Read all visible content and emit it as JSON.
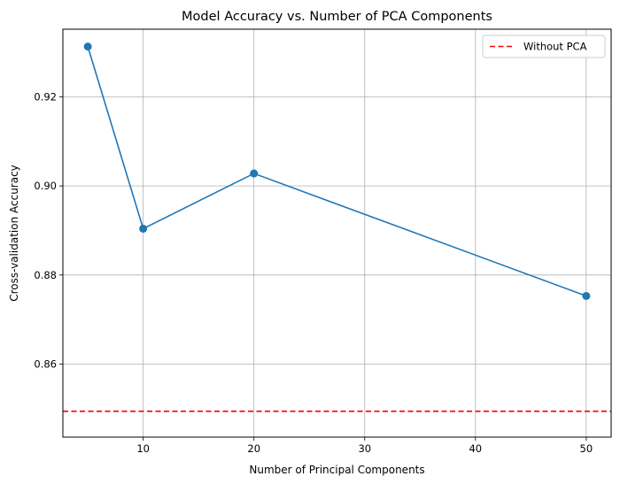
{
  "chart_data": {
    "type": "line",
    "title": "Model Accuracy vs. Number of PCA Components",
    "xlabel": "Number of Principal Components",
    "ylabel": "Cross-validation Accuracy",
    "xlim": [
      2.75,
      52.25
    ],
    "ylim": [
      0.8436,
      0.9352
    ],
    "xticks": [
      10,
      20,
      30,
      40,
      50
    ],
    "xtick_labels": [
      "10",
      "20",
      "30",
      "40",
      "50"
    ],
    "yticks": [
      0.86,
      0.88,
      0.9,
      0.92
    ],
    "ytick_labels": [
      "0.86",
      "0.88",
      "0.90",
      "0.92"
    ],
    "grid": true,
    "legend_position": "top-right",
    "series": [
      {
        "x": [
          5,
          10,
          20,
          50
        ],
        "y": [
          0.9313,
          0.8904,
          0.9028,
          0.8753
        ],
        "color": "#1f77b4",
        "marker": "circle"
      }
    ],
    "reference_lines": [
      {
        "name": "Without PCA",
        "y": 0.8494,
        "color": "#ff0000",
        "style": "dashed"
      }
    ]
  }
}
